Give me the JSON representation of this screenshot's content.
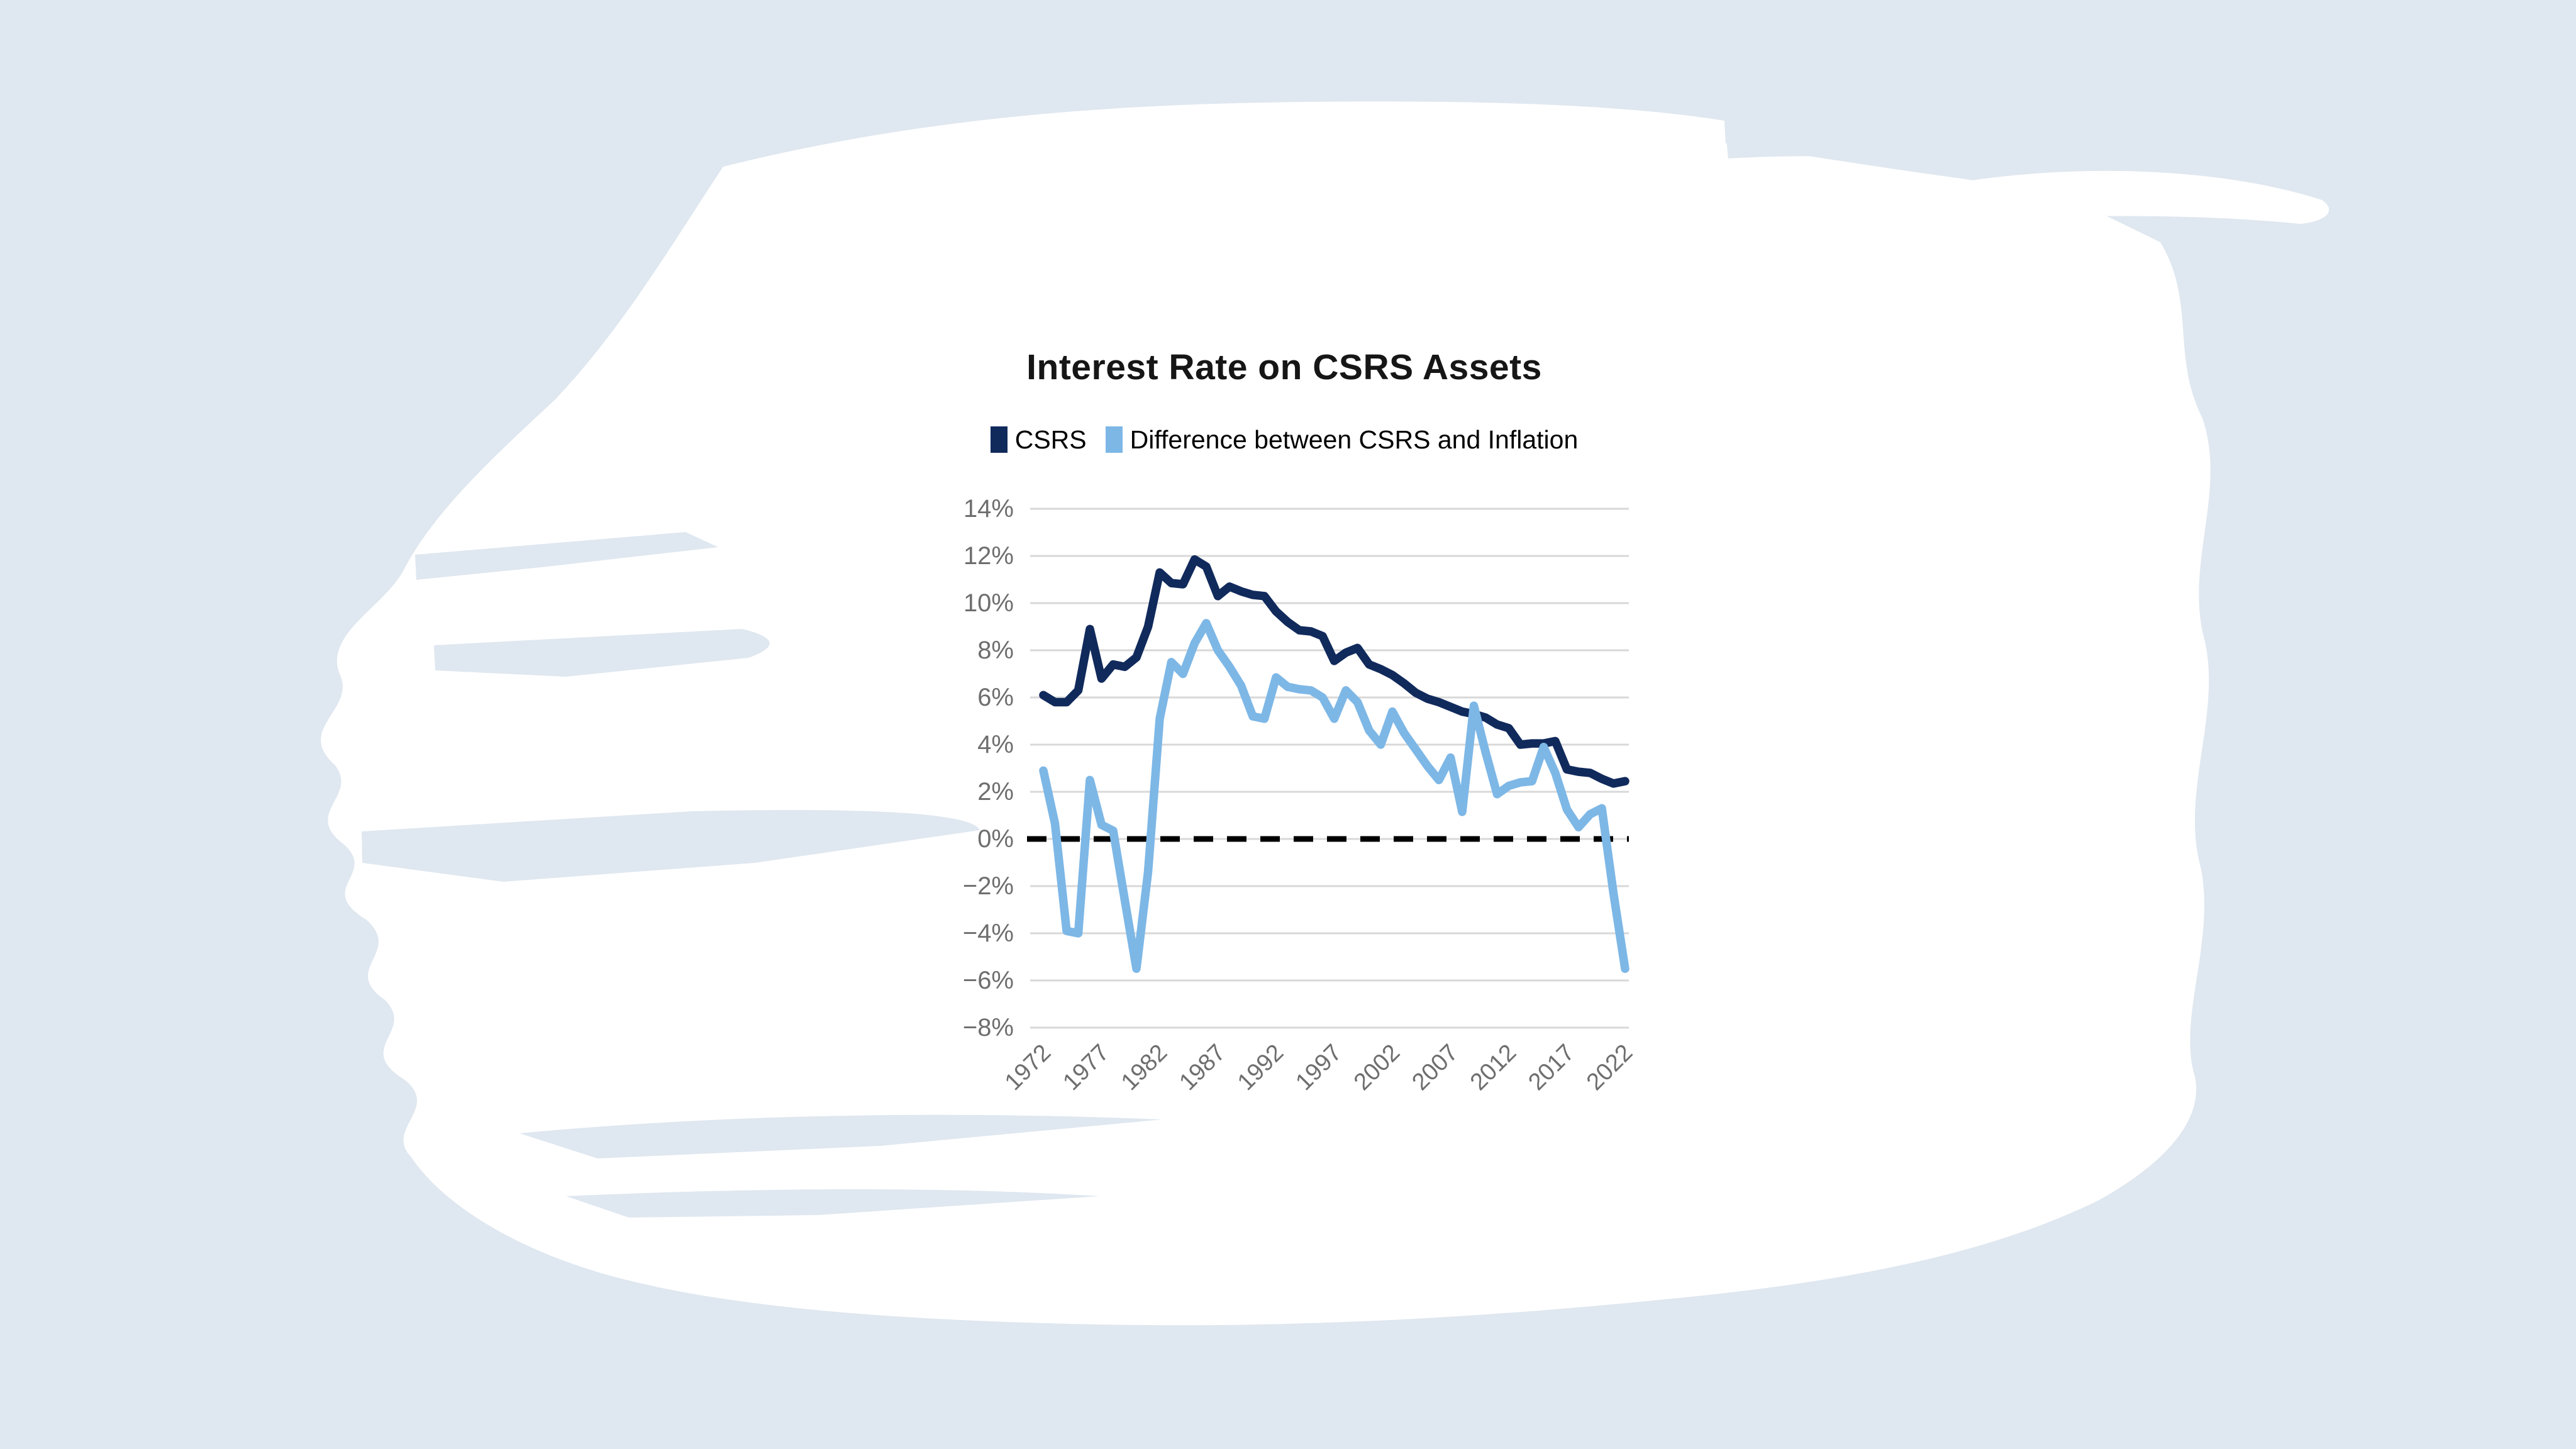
{
  "title": "Interest Rate on CSRS Assets",
  "legend": {
    "csrs_label": "CSRS",
    "difference_label": "Difference between CSRS and Inflation"
  },
  "colors": {
    "background": "#DFE7F0",
    "brush_white": "#FFFFFF",
    "csrs_line": "#112A5C",
    "difference_line": "#7DB7E6",
    "gridline": "#D8D8D8",
    "zero_line": "#000000",
    "axis_label": "#6E6E6E",
    "title_text": "#161616"
  },
  "y_axis": {
    "tick_labels": [
      "14%",
      "12%",
      "10%",
      "8%",
      "6%",
      "4%",
      "2%",
      "0%",
      "−2%",
      "−4%",
      "−6%",
      "−8%"
    ],
    "tick_values": [
      14,
      12,
      10,
      8,
      6,
      4,
      2,
      0,
      -2,
      -4,
      -6,
      -8
    ]
  },
  "x_axis": {
    "tick_labels": [
      "1972",
      "1977",
      "1982",
      "1987",
      "1992",
      "1997",
      "2002",
      "2007",
      "2012",
      "2017",
      "2022"
    ],
    "tick_values": [
      1972,
      1977,
      1982,
      1987,
      1992,
      1997,
      2002,
      2007,
      2012,
      2017,
      2022
    ]
  },
  "chart_data": {
    "type": "line",
    "title": "Interest Rate on CSRS Assets",
    "xlabel": "",
    "ylabel": "",
    "ylim": [
      -8,
      14
    ],
    "ytick_step": 2,
    "grid": "horizontal",
    "zero_reference_line": "dashed black",
    "legend_position": "top",
    "x": [
      1972,
      1973,
      1974,
      1975,
      1976,
      1977,
      1978,
      1979,
      1980,
      1981,
      1982,
      1983,
      1984,
      1985,
      1986,
      1987,
      1988,
      1989,
      1990,
      1991,
      1992,
      1993,
      1994,
      1995,
      1996,
      1997,
      1998,
      1999,
      2000,
      2001,
      2002,
      2003,
      2004,
      2005,
      2006,
      2007,
      2008,
      2009,
      2010,
      2011,
      2012,
      2013,
      2014,
      2015,
      2016,
      2017,
      2018,
      2019,
      2020,
      2021,
      2022
    ],
    "series": [
      {
        "name": "CSRS",
        "color": "#112A5C",
        "values": [
          6.1,
          5.8,
          5.8,
          6.3,
          8.9,
          6.8,
          7.4,
          7.3,
          7.7,
          9.0,
          11.3,
          10.85,
          10.8,
          11.85,
          11.55,
          10.3,
          10.7,
          10.5,
          10.35,
          10.3,
          9.65,
          9.2,
          8.85,
          8.8,
          8.6,
          7.55,
          7.9,
          8.1,
          7.4,
          7.2,
          6.95,
          6.6,
          6.2,
          5.95,
          5.8,
          5.6,
          5.4,
          5.3,
          5.15,
          4.85,
          4.7,
          4.0,
          4.05,
          4.05,
          4.15,
          2.95,
          2.85,
          2.8,
          2.55,
          2.35,
          2.45
        ]
      },
      {
        "name": "Difference between CSRS and Inflation",
        "color": "#7DB7E6",
        "values": [
          2.9,
          0.65,
          -3.9,
          -4.0,
          2.5,
          0.6,
          0.35,
          -2.6,
          -5.5,
          -1.4,
          5.1,
          7.5,
          7.0,
          8.3,
          9.15,
          8.0,
          7.3,
          6.5,
          5.2,
          5.1,
          6.85,
          6.45,
          6.35,
          6.3,
          6.0,
          5.1,
          6.3,
          5.8,
          4.6,
          4.0,
          5.4,
          4.5,
          3.8,
          3.1,
          2.5,
          3.45,
          1.15,
          5.65,
          3.7,
          1.9,
          2.25,
          2.4,
          2.45,
          3.9,
          2.8,
          1.25,
          0.5,
          1.05,
          1.3,
          -2.3,
          -5.5
        ]
      }
    ]
  }
}
